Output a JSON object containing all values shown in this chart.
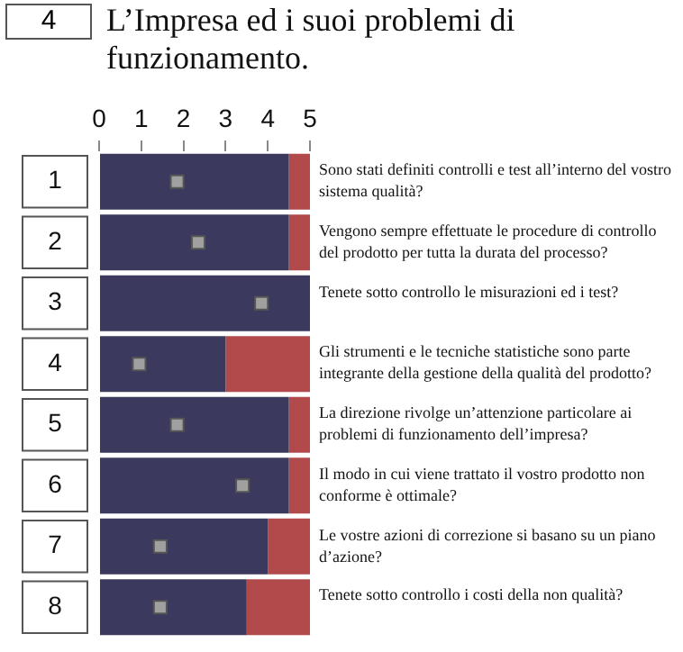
{
  "chart_data": {
    "type": "bar",
    "orientation": "horizontal",
    "stacked": true,
    "title": "L’Impresa ed i suoi problemi di funzionamento.",
    "categories": [
      "1",
      "2",
      "3",
      "4",
      "5",
      "6",
      "7",
      "8"
    ],
    "xlim": [
      0,
      5
    ],
    "xticks": [
      0,
      1,
      2,
      3,
      4,
      5
    ],
    "marker": "square",
    "series": [
      {
        "color": "#3b3a5e",
        "values": [
          4.5,
          4.5,
          5,
          3,
          4.5,
          4.5,
          4,
          3.5
        ]
      },
      {
        "color": "#b24a4c",
        "values": [
          0.5,
          0.5,
          0,
          2,
          0.5,
          0.5,
          1,
          1.5
        ]
      },
      {
        "type": "scatter",
        "color": "#a0a0a0",
        "values": [
          1.85,
          2.35,
          3.85,
          0.95,
          1.85,
          3.4,
          1.45,
          1.45
        ]
      }
    ],
    "annotations": [
      "4",
      "Sono stati definiti controlli e test all’interno del vostro sistema qualità?",
      "Vengono sempre effettuate le procedure di controllo del prodotto per tutta la durata del processo?",
      "Tenete sotto controllo le misurazioni ed i test?",
      "Gli strumenti e le tecniche statistiche sono parte integrante della gestione della qualità del prodotto?",
      "La direzione rivolge un’attenzione particolare ai problemi di funzionamento dell’impresa?",
      "Il modo in cui viene trattato il vostro prodotto non conforme è ottimale?",
      "Le vostre azioni di correzione si basano su un piano d’azione?",
      "Tenete sotto controllo i costi della non qualità?"
    ]
  }
}
